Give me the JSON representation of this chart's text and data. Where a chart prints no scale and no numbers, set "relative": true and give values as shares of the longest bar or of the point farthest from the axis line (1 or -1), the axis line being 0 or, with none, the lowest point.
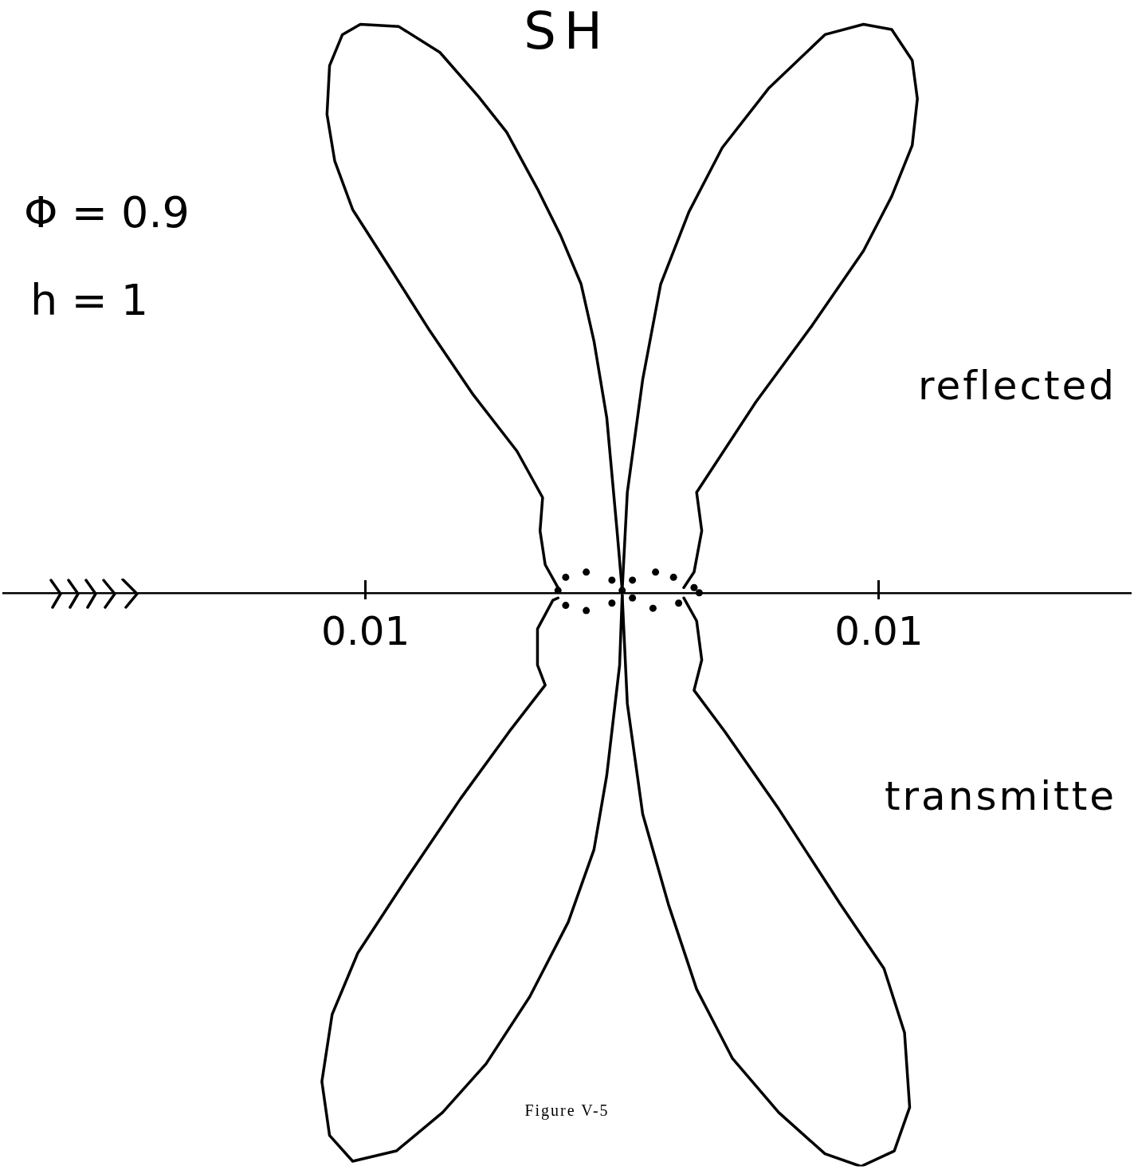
{
  "chart_data": {
    "type": "line",
    "title": "SH",
    "annotations": [
      "Φ = 0.9",
      "h = 1",
      "reflected",
      "transmitte",
      "Figure V-5"
    ],
    "xlim": [
      -0.0241,
      0.0198
    ],
    "xticks": [
      {
        "value": -0.01,
        "label": "0.01"
      },
      0.01
    ],
    "relative": true,
    "tick_labels": "x",
    "grid": false,
    "legend": false,
    "marker": "none",
    "line_style": "solid",
    "series": [
      {
        "color": "#000000",
        "x": [
          0,
          -0.0002,
          -0.0006,
          -0.0011,
          -0.0016,
          -0.0024,
          -0.0033,
          -0.0045,
          -0.0056,
          -0.0071,
          -0.0087,
          -0.0102,
          -0.0109,
          -0.0114,
          -0.0115,
          -0.0112,
          -0.0105,
          -0.0091,
          -0.0075,
          -0.0058,
          -0.0041,
          -0.0031,
          -0.0032,
          -0.003,
          -0.0025
        ],
        "values": [
          0.004,
          0.108,
          0.305,
          0.439,
          0.538,
          0.623,
          0.704,
          0.803,
          0.865,
          0.942,
          0.987,
          0.991,
          0.973,
          0.919,
          0.834,
          0.753,
          0.668,
          0.57,
          0.457,
          0.345,
          0.247,
          0.166,
          0.108,
          0.049,
          0.009
        ]
      },
      {
        "color": "#000000",
        "x": [
          0,
          0.0002,
          0.0008,
          0.0015,
          0.0026,
          0.0039,
          0.0057,
          0.0079,
          0.0094,
          0.0105,
          0.0113,
          0.0115,
          0.0113,
          0.0105,
          0.0094,
          0.0074,
          0.0052,
          0.0029,
          0.0031,
          0.0028,
          0.0024
        ],
        "values": [
          0.004,
          0.175,
          0.372,
          0.538,
          0.664,
          0.776,
          0.879,
          0.973,
          0.991,
          0.982,
          0.928,
          0.861,
          0.78,
          0.691,
          0.596,
          0.466,
          0.332,
          0.175,
          0.108,
          0.036,
          0.009
        ]
      },
      {
        "color": "#000000",
        "x": [
          0,
          -0.0001,
          -0.0006,
          -0.0011,
          -0.0021,
          -0.0036,
          -0.0053,
          -0.007,
          -0.0088,
          -0.0105,
          -0.0114,
          -0.0117,
          -0.0113,
          -0.0103,
          -0.0084,
          -0.0063,
          -0.0044,
          -0.003,
          -0.0033,
          -0.0033,
          -0.0027,
          -0.0025
        ],
        "values": [
          -0.004,
          -0.126,
          -0.318,
          -0.448,
          -0.574,
          -0.704,
          -0.821,
          -0.906,
          -0.973,
          -0.991,
          -0.946,
          -0.852,
          -0.735,
          -0.628,
          -0.498,
          -0.359,
          -0.242,
          -0.161,
          -0.126,
          -0.063,
          -0.013,
          -0.009
        ]
      },
      {
        "color": "#000000",
        "x": [
          0,
          0.0002,
          0.0008,
          0.0018,
          0.0029,
          0.0043,
          0.0061,
          0.0079,
          0.0093,
          0.0106,
          0.0112,
          0.011,
          0.0102,
          0.0085,
          0.0061,
          0.004,
          0.0028,
          0.0031,
          0.0029,
          0.0024
        ],
        "values": [
          -0.004,
          -0.193,
          -0.386,
          -0.543,
          -0.691,
          -0.812,
          -0.906,
          -0.978,
          -1,
          -0.973,
          -0.897,
          -0.767,
          -0.655,
          -0.543,
          -0.377,
          -0.242,
          -0.17,
          -0.117,
          -0.049,
          -0.009
        ]
      },
      {
        "type": "scatter",
        "marker": "circle",
        "color": "#000000",
        "x": [
          -0.0025,
          -0.0022,
          -0.0014,
          -0.0004,
          0,
          -0.0004,
          -0.0014,
          -0.0022,
          0.0004,
          0.0013,
          0.002,
          0.0028,
          0.003,
          0.0022,
          0.0012,
          0.0004
        ],
        "values": [
          0.004,
          0.027,
          0.036,
          0.022,
          0.004,
          -0.018,
          -0.031,
          -0.022,
          0.022,
          0.036,
          0.027,
          0.009,
          0,
          -0.018,
          -0.027,
          -0.009
        ]
      }
    ]
  }
}
